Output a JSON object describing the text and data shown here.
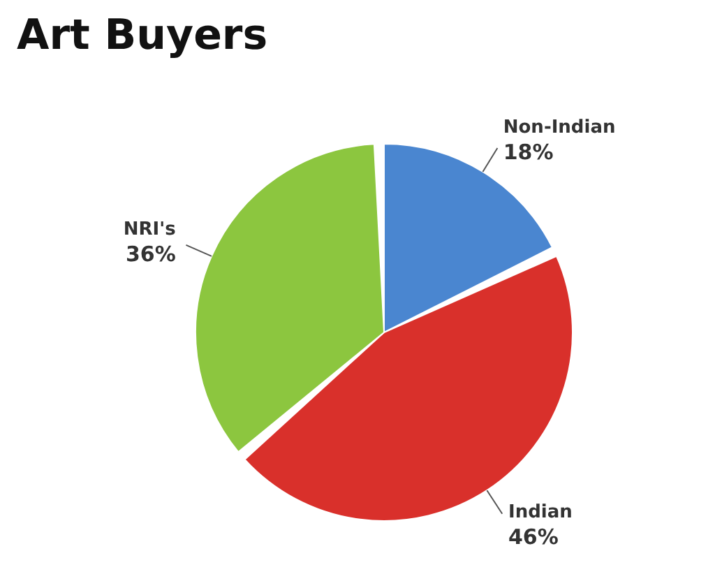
{
  "chart_data": {
    "type": "pie",
    "title": "Art Buyers",
    "categories": [
      "Non-Indian",
      "Indian",
      "NRI's"
    ],
    "values": [
      18,
      46,
      36
    ],
    "value_labels": [
      "18%",
      "46%",
      "36%"
    ],
    "colors": [
      "#4a86d0",
      "#d9302b",
      "#8cc63f"
    ],
    "legend": false
  }
}
